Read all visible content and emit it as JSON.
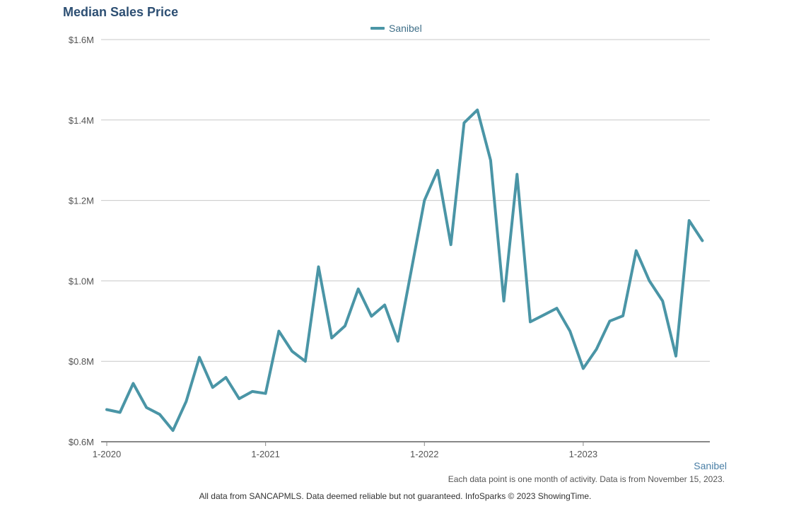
{
  "title": "Median Sales Price",
  "legend": {
    "label": "Sanibel",
    "color": "#4a95a6"
  },
  "region_label": "Sanibel",
  "note": "Each data point is one month of activity. Data is from November 15, 2023.",
  "footer": "All data from SANCAPMLS. Data deemed reliable but not guaranteed. InfoSparks © 2023 ShowingTime.",
  "chart_data": {
    "type": "line",
    "title": "Median Sales Price",
    "xlabel": "",
    "ylabel": "",
    "ylim": [
      600000,
      1600000
    ],
    "yticks": [
      {
        "value": 600000,
        "label": "$0.6M"
      },
      {
        "value": 800000,
        "label": "$0.8M"
      },
      {
        "value": 1000000,
        "label": "$1.0M"
      },
      {
        "value": 1200000,
        "label": "$1.2M"
      },
      {
        "value": 1400000,
        "label": "$1.4M"
      },
      {
        "value": 1600000,
        "label": "$1.6M"
      }
    ],
    "xticks": [
      {
        "value": "2020-01",
        "label": "1-2020"
      },
      {
        "value": "2021-01",
        "label": "1-2021"
      },
      {
        "value": "2022-01",
        "label": "1-2022"
      },
      {
        "value": "2023-01",
        "label": "1-2023"
      }
    ],
    "grid": true,
    "legend_position": "top-center",
    "x": [
      "2020-01",
      "2020-02",
      "2020-03",
      "2020-04",
      "2020-05",
      "2020-06",
      "2020-07",
      "2020-08",
      "2020-09",
      "2020-10",
      "2020-11",
      "2020-12",
      "2021-01",
      "2021-02",
      "2021-03",
      "2021-04",
      "2021-05",
      "2021-06",
      "2021-07",
      "2021-08",
      "2021-09",
      "2021-10",
      "2021-11",
      "2021-12",
      "2022-01",
      "2022-02",
      "2022-03",
      "2022-04",
      "2022-05",
      "2022-06",
      "2022-07",
      "2022-08",
      "2022-09",
      "2022-10",
      "2022-11",
      "2022-12",
      "2023-01",
      "2023-02",
      "2023-03",
      "2023-04",
      "2023-05",
      "2023-06",
      "2023-07",
      "2023-08",
      "2023-09",
      "2023-10"
    ],
    "series": [
      {
        "name": "Sanibel",
        "color": "#4a95a6",
        "values": [
          680000,
          673000,
          745000,
          685000,
          668000,
          628000,
          700000,
          810000,
          735000,
          760000,
          707000,
          725000,
          720000,
          875000,
          825000,
          800000,
          1035000,
          858000,
          888000,
          980000,
          912000,
          940000,
          850000,
          1025000,
          1200000,
          1275000,
          1090000,
          1393000,
          1425000,
          1300000,
          950000,
          1265000,
          898000,
          915000,
          932000,
          875000,
          782000,
          830000,
          900000,
          913000,
          1075000,
          1000000,
          950000,
          813000,
          1150000,
          1100000
        ]
      }
    ]
  }
}
